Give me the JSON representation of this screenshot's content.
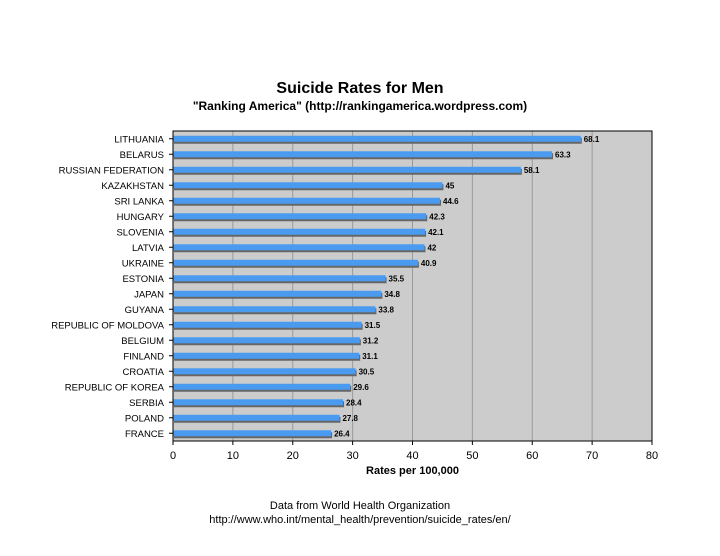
{
  "title": "Suicide Rates for Men",
  "subtitle": "\"Ranking America\" (http://rankingamerica.wordpress.com)",
  "footer": {
    "line1": "Data from World Health Organization",
    "line2": "http://www.who.int/mental_health/prevention/suicide_rates/en/"
  },
  "colors": {
    "bar": "#4a9bef",
    "bar_shadow": "#666666",
    "plot_bg": "#cccccc",
    "grid": "#9a9a9a"
  },
  "chart_data": {
    "type": "bar",
    "orientation": "horizontal",
    "title": "Suicide Rates for Men",
    "subtitle": "\"Ranking America\" (http://rankingamerica.wordpress.com)",
    "xlabel": "Rates per 100,000",
    "ylabel": "",
    "xlim": [
      0,
      80
    ],
    "xticks": [
      0,
      10,
      20,
      30,
      40,
      50,
      60,
      70,
      80
    ],
    "grid": true,
    "categories": [
      "LITHUANIA",
      "BELARUS",
      "RUSSIAN FEDERATION",
      "KAZAKHSTAN",
      "SRI LANKA",
      "HUNGARY",
      "SLOVENIA",
      "LATVIA",
      "UKRAINE",
      "ESTONIA",
      "JAPAN",
      "GUYANA",
      "REPUBLIC OF MOLDOVA",
      "BELGIUM",
      "FINLAND",
      "CROATIA",
      "REPUBLIC OF KOREA",
      "SERBIA",
      "POLAND",
      "FRANCE"
    ],
    "values": [
      68.1,
      63.3,
      58.1,
      45,
      44.6,
      42.3,
      42.1,
      42,
      40.9,
      35.5,
      34.8,
      33.8,
      31.5,
      31.2,
      31.1,
      30.5,
      29.6,
      28.4,
      27.8,
      26.4
    ],
    "value_labels": [
      "68.1",
      "63.3",
      "58.1",
      "45",
      "44.6",
      "42.3",
      "42.1",
      "42",
      "40.9",
      "35.5",
      "34.8",
      "33.8",
      "31.5",
      "31.2",
      "31.1",
      "30.5",
      "29.6",
      "28.4",
      "27.8",
      "26.4"
    ]
  }
}
